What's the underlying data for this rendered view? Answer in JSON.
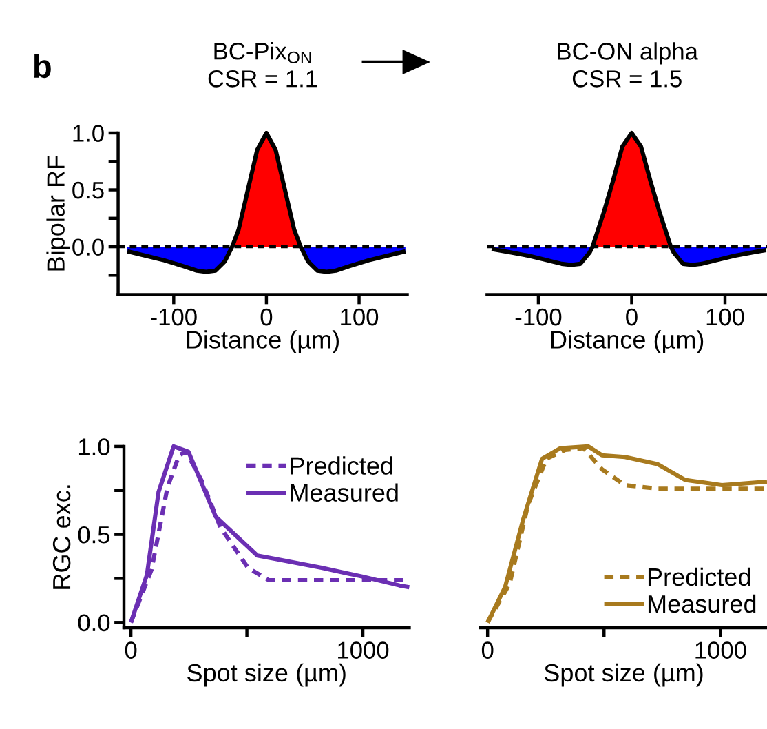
{
  "chart_data": [
    {
      "type": "line",
      "title": "BC-Pix$_{ON}$\nCSR = 1.1",
      "ylabel": "Bipolar RF",
      "xlabel": "Distance (µm)",
      "annotations": [
        "b"
      ],
      "xlim": [
        -160,
        152
      ],
      "ylim": [
        -0.42,
        1.0
      ],
      "xticks": [
        -100,
        0,
        100
      ],
      "yticks": [
        {
          "value": -0.25,
          "label": null
        },
        {
          "value": 0,
          "label": "0.0"
        },
        {
          "value": 0.25,
          "label": null
        },
        {
          "value": 0.5,
          "label": "0.5"
        },
        {
          "value": 0.75,
          "label": null
        },
        {
          "value": 1,
          "label": "1.0"
        }
      ],
      "ref_lines": [
        {
          "axis": "y",
          "value": 0,
          "color": "#000000",
          "line_style": "dashed"
        }
      ],
      "series": [
        {
          "type": "area",
          "color": "#0000ff",
          "x": [
            -150,
            -130,
            -110,
            -90,
            -75,
            -65,
            -55,
            -45,
            -37
          ],
          "values": [
            -0.04,
            -0.08,
            -0.12,
            -0.17,
            -0.21,
            -0.22,
            -0.21,
            -0.13,
            0
          ]
        },
        {
          "type": "area",
          "color": "#ff0000",
          "x": [
            -37,
            -30,
            -20,
            -10,
            0,
            10,
            20,
            30,
            37
          ],
          "values": [
            0,
            0.15,
            0.5,
            0.85,
            1.0,
            0.85,
            0.5,
            0.15,
            0
          ]
        },
        {
          "type": "area",
          "color": "#0000ff",
          "x": [
            37,
            45,
            55,
            65,
            75,
            90,
            110,
            130,
            150
          ],
          "values": [
            0,
            -0.13,
            -0.21,
            -0.22,
            -0.21,
            -0.17,
            -0.12,
            -0.08,
            -0.04
          ]
        },
        {
          "type": "line",
          "color": "#000000",
          "x": [
            -150,
            -130,
            -110,
            -90,
            -75,
            -65,
            -55,
            -45,
            -37,
            -30,
            -20,
            -10,
            0,
            10,
            20,
            30,
            37,
            45,
            55,
            65,
            75,
            90,
            110,
            130,
            150
          ],
          "values": [
            -0.04,
            -0.08,
            -0.12,
            -0.17,
            -0.21,
            -0.22,
            -0.21,
            -0.13,
            0,
            0.15,
            0.5,
            0.85,
            1.0,
            0.85,
            0.5,
            0.15,
            0,
            -0.13,
            -0.21,
            -0.22,
            -0.21,
            -0.17,
            -0.12,
            -0.08,
            -0.04
          ]
        }
      ]
    },
    {
      "type": "line",
      "title": "BC-ON alpha\nCSR = 1.5",
      "xlabel": "Distance (µm)",
      "tick_labels": "x",
      "xlim": [
        -155,
        145
      ],
      "ylim": [
        -0.42,
        1.0
      ],
      "xticks": [
        -100,
        0,
        100
      ],
      "ref_lines": [
        {
          "axis": "y",
          "value": 0,
          "color": "#000000",
          "line_style": "dashed"
        }
      ],
      "series": [
        {
          "type": "area",
          "color": "#0000ff",
          "x": [
            -150,
            -130,
            -110,
            -90,
            -75,
            -65,
            -55,
            -45,
            -42
          ],
          "values": [
            -0.02,
            -0.05,
            -0.08,
            -0.12,
            -0.15,
            -0.16,
            -0.15,
            -0.05,
            0
          ]
        },
        {
          "type": "area",
          "color": "#ff0000",
          "x": [
            -42,
            -30,
            -20,
            -10,
            0,
            10,
            20,
            30,
            42
          ],
          "values": [
            0,
            0.3,
            0.58,
            0.88,
            1.0,
            0.88,
            0.58,
            0.3,
            0
          ]
        },
        {
          "type": "area",
          "color": "#0000ff",
          "x": [
            42,
            45,
            55,
            65,
            75,
            90,
            110,
            130,
            144
          ],
          "values": [
            0,
            -0.05,
            -0.15,
            -0.16,
            -0.15,
            -0.12,
            -0.08,
            -0.05,
            -0.03
          ]
        },
        {
          "type": "line",
          "color": "#000000",
          "x": [
            -150,
            -130,
            -110,
            -90,
            -75,
            -65,
            -55,
            -45,
            -42,
            -30,
            -20,
            -10,
            0,
            10,
            20,
            30,
            42,
            45,
            55,
            65,
            75,
            90,
            110,
            130,
            144
          ],
          "values": [
            -0.02,
            -0.05,
            -0.08,
            -0.12,
            -0.15,
            -0.16,
            -0.15,
            -0.05,
            0,
            0.3,
            0.58,
            0.88,
            1.0,
            0.88,
            0.58,
            0.3,
            0,
            -0.05,
            -0.15,
            -0.16,
            -0.15,
            -0.12,
            -0.08,
            -0.05,
            -0.03
          ]
        }
      ]
    },
    {
      "type": "line",
      "ylabel": "RGC exc.",
      "xlabel": "Spot size (µm)",
      "legend": "top right",
      "xlim": [
        -30,
        1200
      ],
      "ylim": [
        -0.03,
        1.0
      ],
      "xticks": [
        0,
        {
          "value": 500,
          "label": null
        },
        1000
      ],
      "yticks": [
        {
          "value": 0,
          "label": "0.0"
        },
        {
          "value": 0.25,
          "label": null
        },
        {
          "value": 0.5,
          "label": "0.5"
        },
        {
          "value": 0.75,
          "label": null
        },
        {
          "value": 1,
          "label": "1.0"
        }
      ],
      "series": [
        {
          "name": "Predicted",
          "color": "#6b2fb3",
          "line_style": "dashed",
          "x": [
            0,
            89,
            158,
            208,
            238,
            307,
            386,
            505,
            594,
            822,
            1158,
            1200
          ],
          "values": [
            0,
            0.3,
            0.77,
            0.95,
            0.97,
            0.8,
            0.54,
            0.31,
            0.24,
            0.24,
            0.24,
            0.24
          ]
        },
        {
          "name": "Measured",
          "color": "#6b2fb3",
          "line_style": "solid",
          "x": [
            0,
            69,
            119,
            184,
            248,
            366,
            545,
            624,
            822,
            1000,
            1158,
            1200
          ],
          "values": [
            0,
            0.27,
            0.74,
            1.0,
            0.97,
            0.6,
            0.38,
            0.36,
            0.31,
            0.26,
            0.21,
            0.2
          ]
        }
      ]
    },
    {
      "type": "line",
      "xlabel": "Spot size (µm)",
      "legend": "bottom right",
      "tick_labels": "x",
      "xlim": [
        -30,
        1200
      ],
      "ylim": [
        -0.03,
        1.0
      ],
      "xticks": [
        0,
        {
          "value": 500,
          "label": null
        },
        1000
      ],
      "series": [
        {
          "name": "Predicted",
          "color": "#a87a1e",
          "line_style": "dashed",
          "x": [
            0,
            95,
            174,
            253,
            333,
            412,
            491,
            590,
            729,
            1200
          ],
          "values": [
            0,
            0.22,
            0.67,
            0.93,
            0.98,
            0.99,
            0.87,
            0.78,
            0.76,
            0.76
          ]
        },
        {
          "name": "Measured",
          "color": "#a87a1e",
          "line_style": "solid",
          "x": [
            0,
            75,
            154,
            234,
            313,
            432,
            491,
            590,
            729,
            848,
            1006,
            1200
          ],
          "values": [
            0,
            0.2,
            0.59,
            0.93,
            0.99,
            1.0,
            0.95,
            0.94,
            0.9,
            0.81,
            0.78,
            0.8
          ]
        }
      ]
    }
  ]
}
